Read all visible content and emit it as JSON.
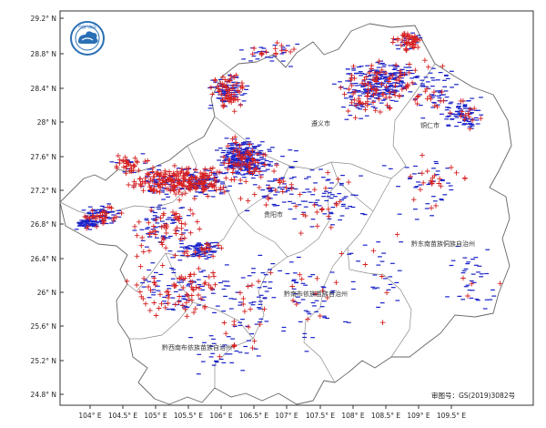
{
  "map": {
    "lat_ticks": [
      "29.2° N",
      "28.8° N",
      "28.4° N",
      "28° N",
      "27.6° N",
      "27.2° N",
      "26.8° N",
      "26.4° N",
      "26° N",
      "25.6° N",
      "25.2° N",
      "24.8° N"
    ],
    "lon_ticks": [
      "104° E",
      "104.5° E",
      "105° E",
      "105.5° E",
      "106° E",
      "106.5° E",
      "107° E",
      "107.5° E",
      "108° E",
      "108.5° E",
      "109° E",
      "109.5° E"
    ],
    "region_labels": [
      {
        "id": "zunyi",
        "text": "遵义市"
      },
      {
        "id": "tongren",
        "text": "铜仁市"
      },
      {
        "id": "guiyang",
        "text": "贵阳市"
      },
      {
        "id": "qiandongnan",
        "text": "黔东南苗族侗族自治州"
      },
      {
        "id": "qiannan",
        "text": "黔南布依族苗族自治州"
      },
      {
        "id": "qianxinan",
        "text": "黔西南布依族苗族自治州"
      }
    ],
    "approval_number": "审图号：GS(2019)3082号",
    "logo": {
      "name": "cma-logo",
      "text": "中国气象局"
    },
    "symbols": {
      "positive": "+",
      "negative": "−"
    },
    "colors": {
      "positive": "#d62020",
      "negative": "#1a22c8",
      "boundary": "#888888",
      "frame": "#333333"
    }
  }
}
